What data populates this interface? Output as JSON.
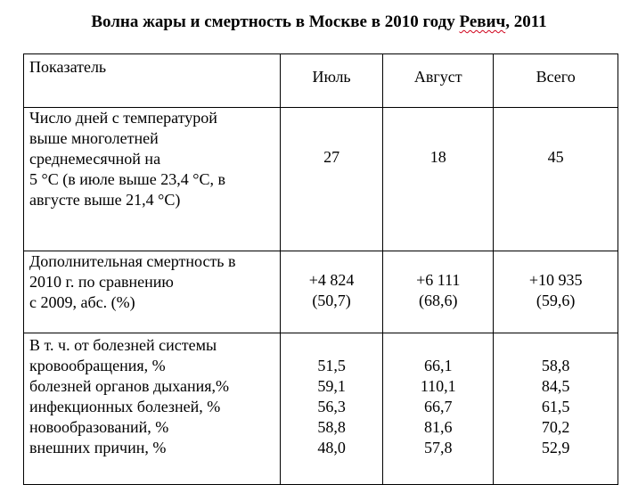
{
  "title": {
    "text": "Волна жары и смертность в Москве в 2010 году",
    "author": "Ревич",
    "year": ", 2011"
  },
  "table": {
    "headers": [
      "Показатель",
      "Июль",
      "Август",
      "Всего"
    ],
    "row1": {
      "label_lines": [
        "Число дней с температурой",
        "выше многолетней",
        "среднемесячной на",
        "5 °С (в июле выше 23,4 °С, в",
        "августе выше 21,4 °С)"
      ],
      "values": [
        "27",
        "18",
        "45"
      ]
    },
    "row2": {
      "label_lines": [
        "Дополнительная смертность в",
        "2010 г. по сравнению",
        "с 2009, абс. (%)"
      ],
      "values": [
        [
          "+4 824",
          "(50,7)"
        ],
        [
          "+6 111",
          "(68,6)"
        ],
        [
          "+10 935",
          "(59,6)"
        ]
      ]
    },
    "row3": {
      "label_lines": [
        "В т. ч. от болезней системы",
        "кровообращения, %",
        "болезней органов дыхания,%",
        "инфекционных болезней, %",
        "новообразований, %",
        "внешних причин, %"
      ],
      "values": [
        [
          "51,5",
          "59,1",
          "56,3",
          "58,8",
          "48,0"
        ],
        [
          "66,1",
          "110,1",
          "66,7",
          "81,6",
          "57,8"
        ],
        [
          "58,8",
          "84,5",
          "61,5",
          "70,2",
          "52,9"
        ]
      ]
    }
  }
}
